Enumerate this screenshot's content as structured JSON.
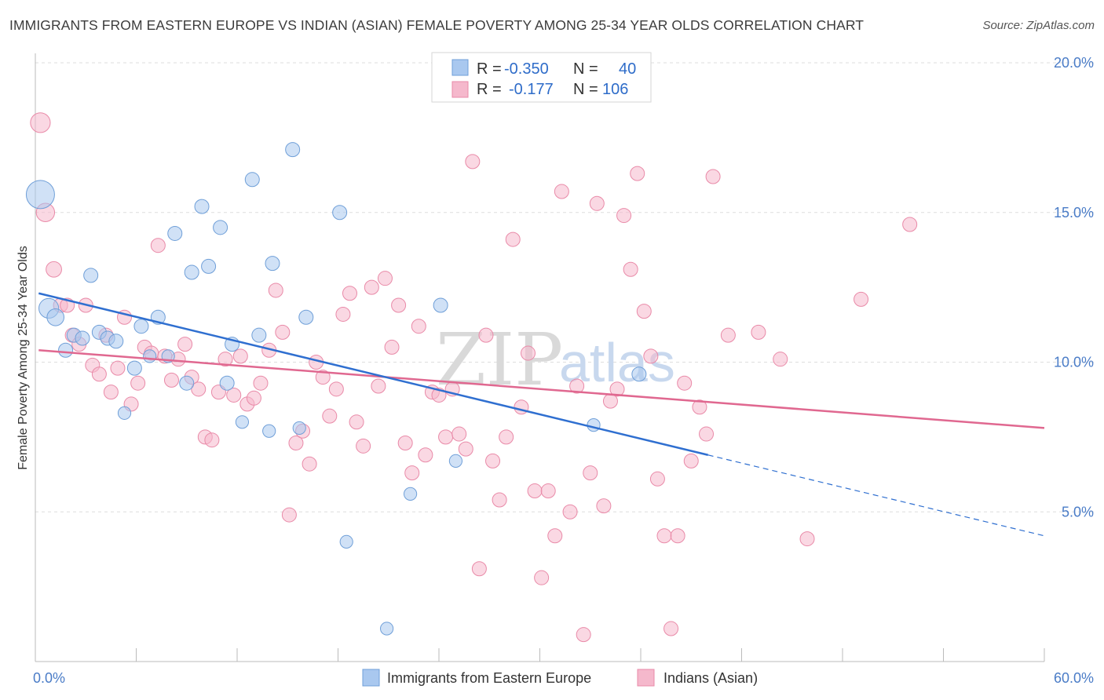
{
  "header": {
    "title": "IMMIGRANTS FROM EASTERN EUROPE VS INDIAN (ASIAN) FEMALE POVERTY AMONG 25-34 YEAR OLDS CORRELATION CHART",
    "source": "Source: ZipAtlas.com"
  },
  "watermark": {
    "zip": "ZIP",
    "atlas": "atlas"
  },
  "legend": {
    "rows": [
      {
        "r_label": "R =",
        "r_value": "-0.350",
        "n_label": "N =",
        "n_value": "40"
      },
      {
        "r_label": "R =",
        "r_value": "-0.177",
        "n_label": "N =",
        "n_value": "106"
      }
    ]
  },
  "colors": {
    "blue_fill": "#a9c8ef",
    "blue_stroke": "#6f9fd8",
    "blue_line": "#2f6fd0",
    "pink_fill": "#f5b8cc",
    "pink_stroke": "#e98aa8",
    "pink_line": "#e06890",
    "grid": "#dddddd"
  },
  "chart_data": {
    "type": "scatter",
    "ylabel": "Female Poverty Among 25-34 Year Olds",
    "xlim": [
      0,
      60
    ],
    "ylim": [
      0,
      20
    ],
    "x_tick_labels": [
      "0.0%",
      "60.0%"
    ],
    "y_ticks": [
      5,
      10,
      15,
      20
    ],
    "y_tick_labels": [
      "5.0%",
      "10.0%",
      "15.0%",
      "20.0%"
    ],
    "grid": true,
    "legend_position": "top-center",
    "series": [
      {
        "name": "Immigrants from Eastern Europe",
        "color": "#a9c8ef",
        "points": [
          [
            0.3,
            15.6,
            20
          ],
          [
            0.8,
            11.8,
            14
          ],
          [
            1.2,
            11.5,
            12
          ],
          [
            1.8,
            10.4,
            10
          ],
          [
            2.3,
            10.9,
            10
          ],
          [
            2.8,
            10.8,
            10
          ],
          [
            3.3,
            12.9,
            10
          ],
          [
            3.8,
            11.0,
            10
          ],
          [
            4.3,
            10.8,
            10
          ],
          [
            4.8,
            10.7,
            10
          ],
          [
            5.3,
            8.3,
            9
          ],
          [
            5.9,
            9.8,
            10
          ],
          [
            6.3,
            11.2,
            10
          ],
          [
            6.8,
            10.2,
            9
          ],
          [
            7.3,
            11.5,
            10
          ],
          [
            7.9,
            10.2,
            9
          ],
          [
            8.3,
            14.3,
            10
          ],
          [
            9.0,
            9.3,
            10
          ],
          [
            9.3,
            13.0,
            10
          ],
          [
            9.9,
            15.2,
            10
          ],
          [
            10.3,
            13.2,
            10
          ],
          [
            11.0,
            14.5,
            10
          ],
          [
            11.4,
            9.3,
            10
          ],
          [
            11.7,
            10.6,
            10
          ],
          [
            12.3,
            8.0,
            9
          ],
          [
            12.9,
            16.1,
            10
          ],
          [
            13.3,
            10.9,
            10
          ],
          [
            13.9,
            7.7,
            9
          ],
          [
            14.1,
            13.3,
            10
          ],
          [
            15.3,
            17.1,
            10
          ],
          [
            15.7,
            7.8,
            9
          ],
          [
            16.1,
            11.5,
            10
          ],
          [
            18.1,
            15.0,
            10
          ],
          [
            18.5,
            4.0,
            9
          ],
          [
            20.9,
            1.1,
            9
          ],
          [
            22.3,
            5.6,
            9
          ],
          [
            24.1,
            11.9,
            10
          ],
          [
            25.0,
            6.7,
            9
          ],
          [
            33.2,
            7.9,
            9
          ],
          [
            35.9,
            9.6,
            10
          ]
        ]
      },
      {
        "name": "Indians (Asian)",
        "color": "#f5b8cc",
        "points": [
          [
            0.3,
            18.0,
            14
          ],
          [
            0.6,
            15.0,
            13
          ],
          [
            1.1,
            13.1,
            11
          ],
          [
            1.5,
            11.9,
            10
          ],
          [
            1.9,
            11.9,
            10
          ],
          [
            2.2,
            10.9,
            10
          ],
          [
            2.6,
            10.6,
            10
          ],
          [
            3.0,
            11.9,
            10
          ],
          [
            3.4,
            9.9,
            10
          ],
          [
            3.8,
            9.6,
            10
          ],
          [
            4.2,
            10.9,
            10
          ],
          [
            4.5,
            9.0,
            10
          ],
          [
            4.9,
            9.8,
            10
          ],
          [
            5.3,
            11.5,
            10
          ],
          [
            5.7,
            8.6,
            10
          ],
          [
            6.1,
            9.3,
            10
          ],
          [
            6.5,
            10.5,
            10
          ],
          [
            6.9,
            10.3,
            10
          ],
          [
            7.3,
            13.9,
            10
          ],
          [
            7.7,
            10.2,
            10
          ],
          [
            8.1,
            9.4,
            10
          ],
          [
            8.5,
            10.1,
            10
          ],
          [
            8.9,
            10.6,
            10
          ],
          [
            9.3,
            9.5,
            10
          ],
          [
            9.7,
            9.1,
            10
          ],
          [
            10.1,
            7.5,
            10
          ],
          [
            10.5,
            7.4,
            10
          ],
          [
            10.9,
            9.0,
            10
          ],
          [
            11.3,
            10.1,
            10
          ],
          [
            11.8,
            8.9,
            10
          ],
          [
            12.2,
            10.2,
            10
          ],
          [
            12.6,
            8.6,
            10
          ],
          [
            13.0,
            8.8,
            10
          ],
          [
            13.4,
            9.3,
            10
          ],
          [
            13.9,
            10.4,
            10
          ],
          [
            14.3,
            12.4,
            10
          ],
          [
            14.7,
            11.0,
            10
          ],
          [
            15.1,
            4.9,
            10
          ],
          [
            15.5,
            7.3,
            10
          ],
          [
            15.9,
            7.7,
            10
          ],
          [
            16.3,
            6.6,
            10
          ],
          [
            16.7,
            10.0,
            10
          ],
          [
            17.1,
            9.5,
            10
          ],
          [
            17.5,
            8.2,
            10
          ],
          [
            17.9,
            9.1,
            10
          ],
          [
            18.3,
            11.6,
            10
          ],
          [
            18.7,
            12.3,
            10
          ],
          [
            19.1,
            8.0,
            10
          ],
          [
            19.5,
            7.2,
            10
          ],
          [
            20.0,
            12.5,
            10
          ],
          [
            20.4,
            9.2,
            10
          ],
          [
            20.8,
            12.8,
            10
          ],
          [
            21.2,
            10.5,
            10
          ],
          [
            21.6,
            11.9,
            10
          ],
          [
            22.0,
            7.3,
            10
          ],
          [
            22.4,
            6.3,
            10
          ],
          [
            22.8,
            11.2,
            10
          ],
          [
            23.2,
            6.9,
            10
          ],
          [
            23.6,
            9.0,
            10
          ],
          [
            24.0,
            8.9,
            10
          ],
          [
            24.4,
            7.5,
            10
          ],
          [
            24.8,
            9.1,
            10
          ],
          [
            25.2,
            7.6,
            10
          ],
          [
            25.6,
            7.1,
            10
          ],
          [
            26.0,
            16.7,
            10
          ],
          [
            26.4,
            3.1,
            10
          ],
          [
            26.8,
            10.9,
            10
          ],
          [
            27.2,
            6.7,
            10
          ],
          [
            27.6,
            5.4,
            10
          ],
          [
            28.0,
            7.5,
            10
          ],
          [
            28.4,
            14.1,
            10
          ],
          [
            28.9,
            8.5,
            10
          ],
          [
            29.3,
            10.3,
            10
          ],
          [
            29.7,
            5.7,
            10
          ],
          [
            30.1,
            2.8,
            10
          ],
          [
            30.5,
            5.7,
            10
          ],
          [
            30.9,
            4.2,
            10
          ],
          [
            31.3,
            15.7,
            10
          ],
          [
            31.8,
            5.0,
            10
          ],
          [
            32.2,
            9.2,
            10
          ],
          [
            32.6,
            0.9,
            10
          ],
          [
            33.0,
            6.3,
            10
          ],
          [
            33.4,
            15.3,
            10
          ],
          [
            33.8,
            5.2,
            10
          ],
          [
            34.2,
            8.7,
            10
          ],
          [
            34.6,
            9.1,
            10
          ],
          [
            35.0,
            14.9,
            10
          ],
          [
            35.4,
            13.1,
            10
          ],
          [
            35.8,
            16.3,
            10
          ],
          [
            36.2,
            11.7,
            10
          ],
          [
            36.6,
            10.2,
            10
          ],
          [
            37.0,
            6.1,
            10
          ],
          [
            37.4,
            4.2,
            10
          ],
          [
            37.8,
            1.1,
            10
          ],
          [
            38.2,
            4.2,
            10
          ],
          [
            38.6,
            9.3,
            10
          ],
          [
            39.0,
            6.7,
            10
          ],
          [
            39.5,
            8.5,
            10
          ],
          [
            39.9,
            7.6,
            10
          ],
          [
            40.3,
            16.2,
            10
          ],
          [
            41.2,
            10.9,
            10
          ],
          [
            43.0,
            11.0,
            10
          ],
          [
            44.3,
            10.1,
            10
          ],
          [
            45.9,
            4.1,
            10
          ],
          [
            49.1,
            12.1,
            10
          ],
          [
            52.0,
            14.6,
            10
          ]
        ]
      }
    ],
    "trendlines": [
      {
        "series": "Immigrants from Eastern Europe",
        "x1": 0.2,
        "y1": 12.3,
        "x2": 40.0,
        "y2": 6.9,
        "dash_to_x": 60.0,
        "dash_to_y": 4.2
      },
      {
        "series": "Indians (Asian)",
        "x1": 0.2,
        "y1": 10.4,
        "x2": 60.0,
        "y2": 7.8
      }
    ]
  }
}
